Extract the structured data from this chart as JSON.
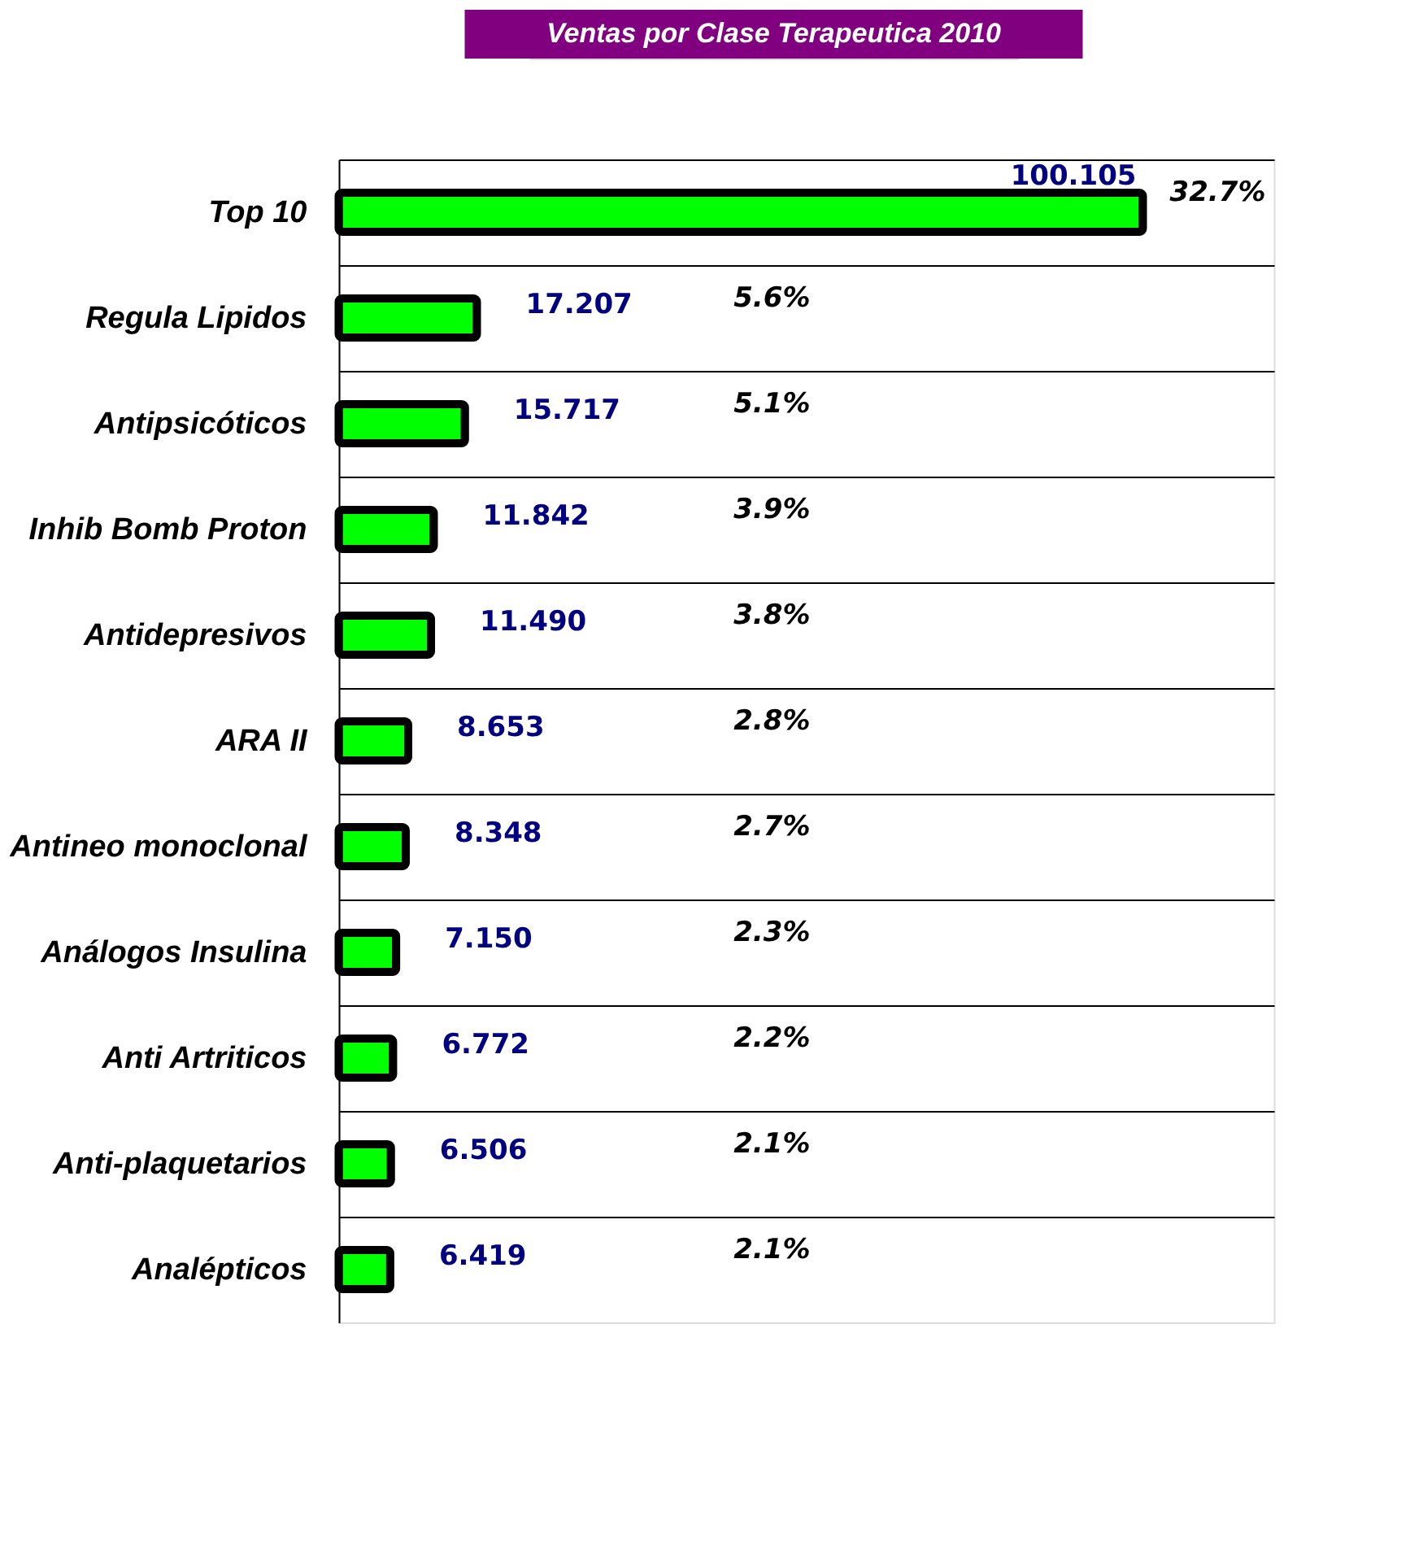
{
  "chart_data": {
    "type": "bar",
    "orientation": "horizontal",
    "title": "Ventas por Clase Terapeutica 2010",
    "categories": [
      "Top 10",
      "Regula Lipidos",
      "Antipsicóticos",
      "Inhib Bomb Proton",
      "Antidepresivos",
      "ARA II",
      "Antineo monoclonal",
      "Análogos Insulina",
      "Anti Artriticos",
      "Anti-plaquetarios",
      "Analépticos"
    ],
    "values": [
      100.105,
      17.207,
      15.717,
      11.842,
      11.49,
      8.653,
      8.348,
      7.15,
      6.772,
      6.506,
      6.419
    ],
    "value_labels": [
      "100.105",
      "17.207",
      "15.717",
      "11.842",
      "11.490",
      "8.653",
      "8.348",
      "7.150",
      "6.772",
      "6.506",
      "6.419"
    ],
    "color": "#00ff00",
    "annotations": [
      "32.7%",
      "5.6%",
      "5.1%",
      "3.9%",
      "3.8%",
      "2.8%",
      "2.7%",
      "2.3%",
      "2.2%",
      "2.1%",
      "2.1%"
    ]
  }
}
